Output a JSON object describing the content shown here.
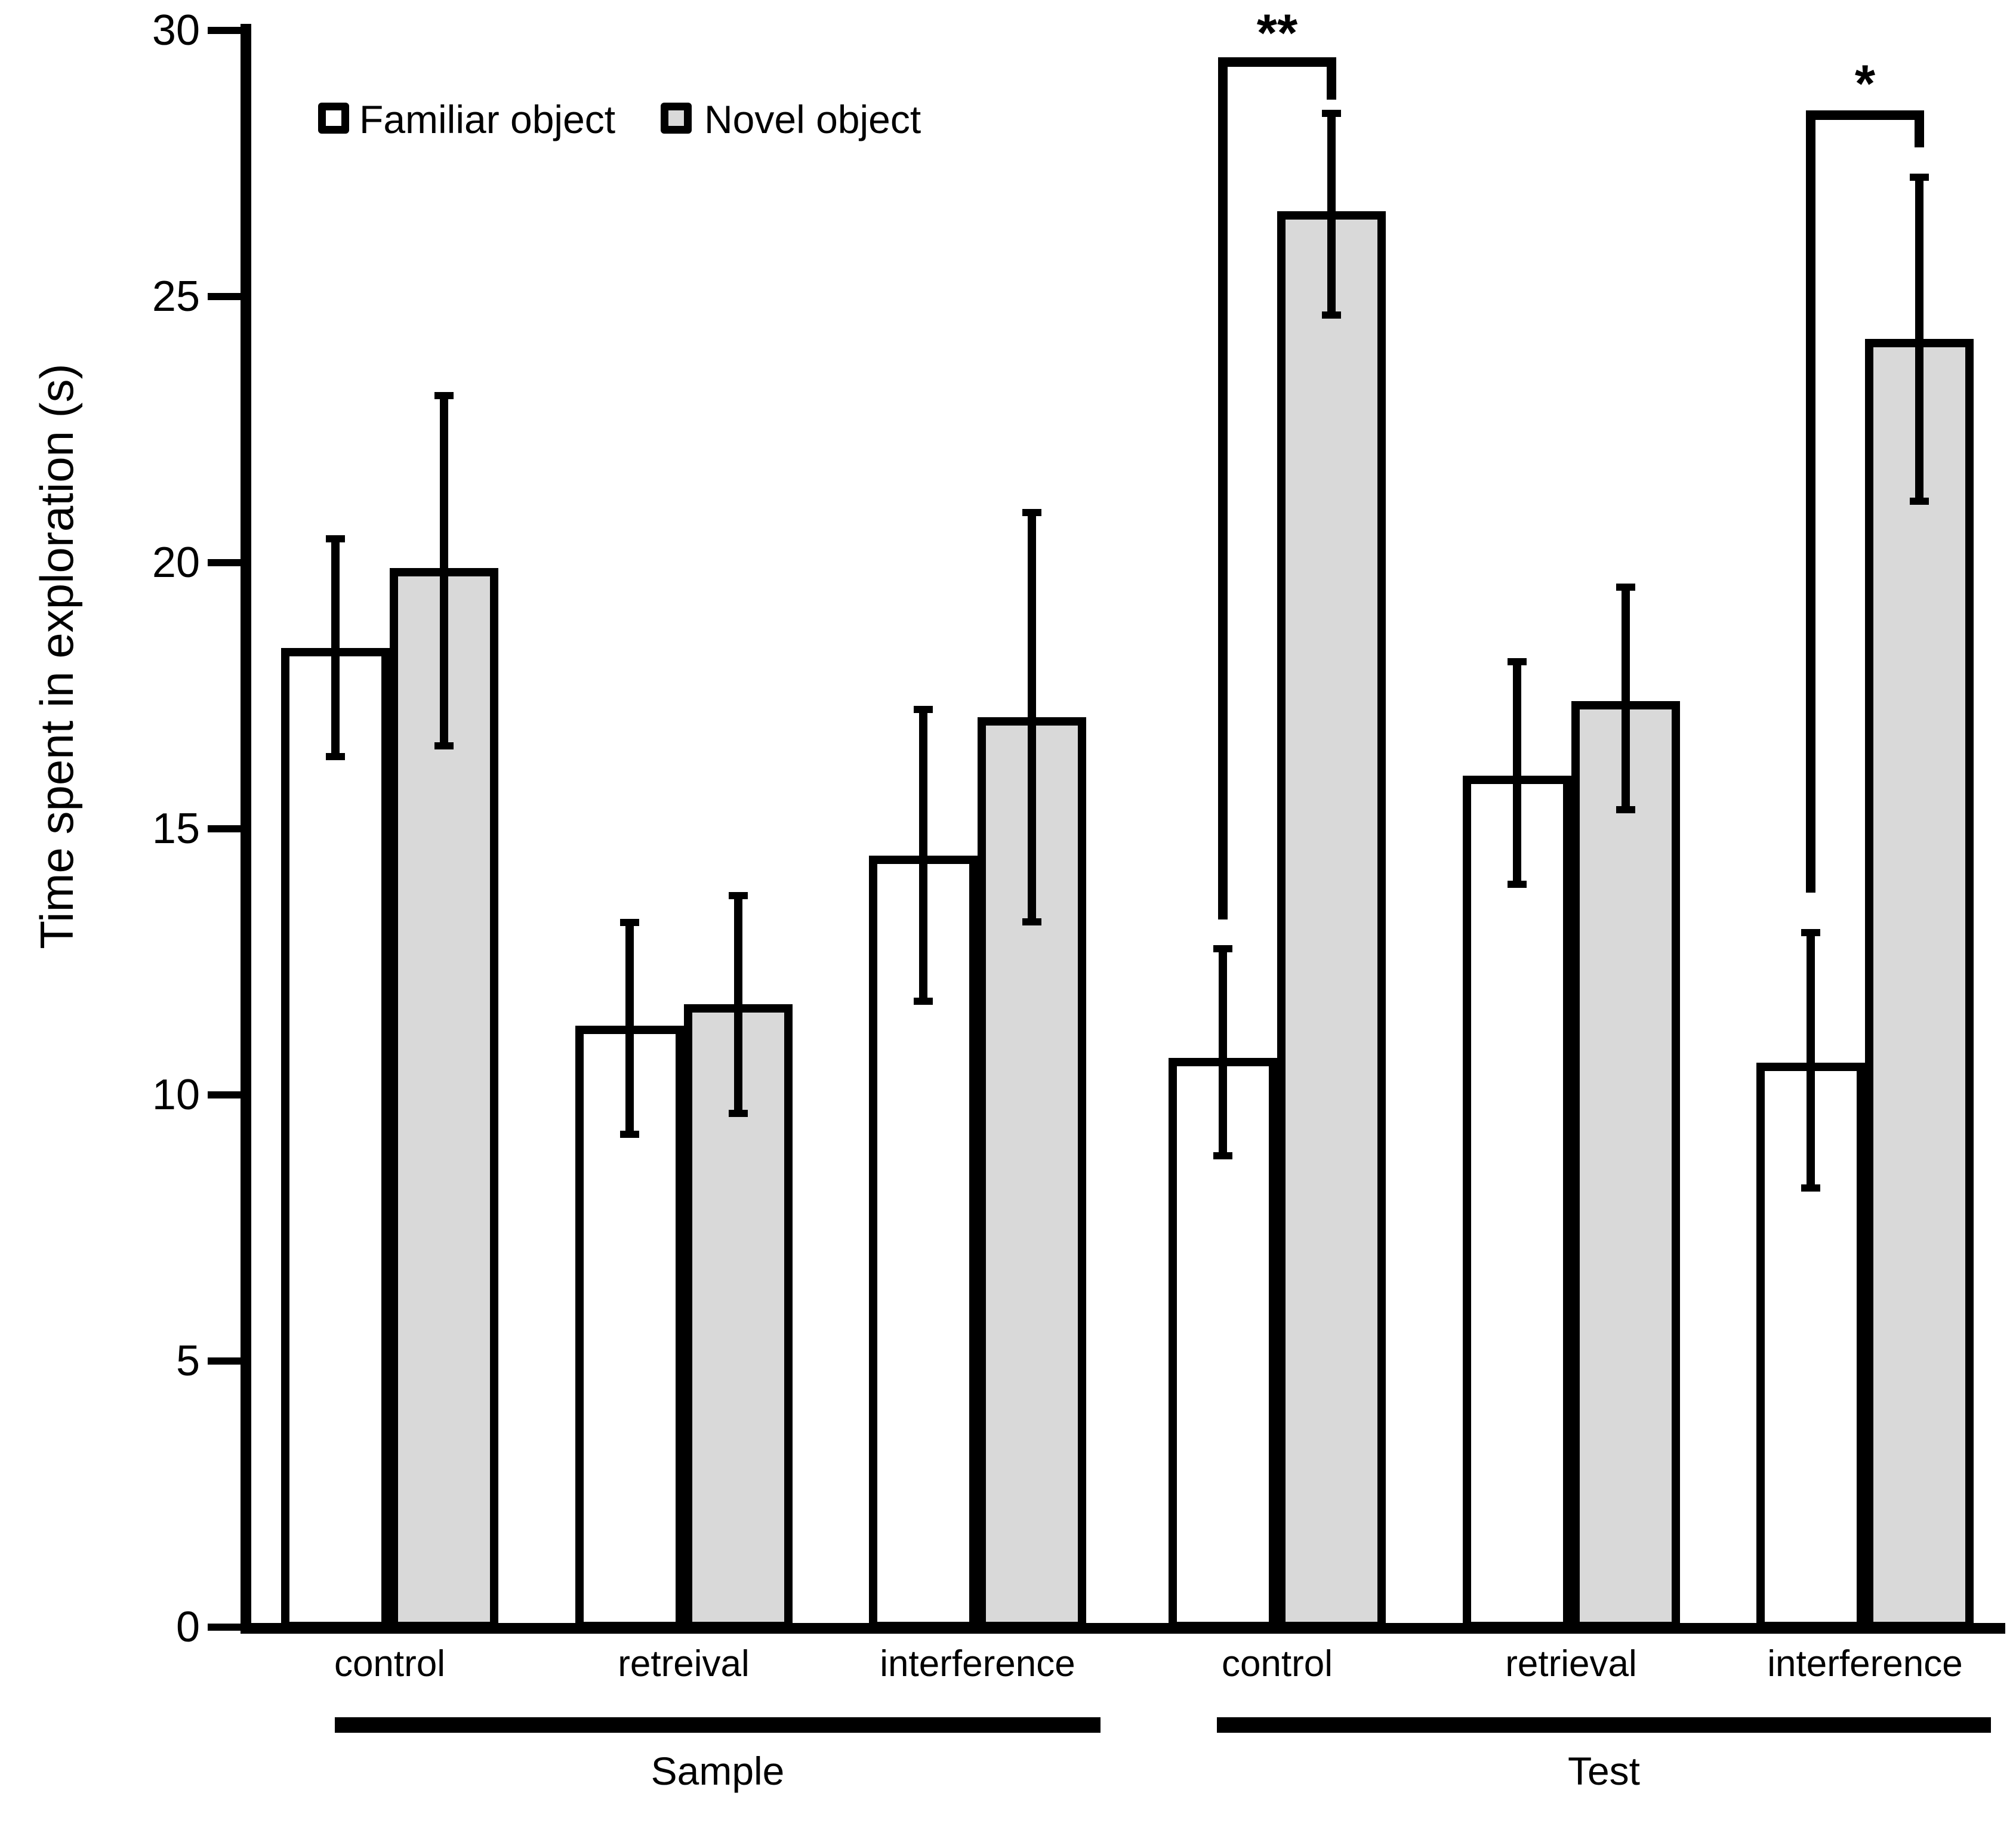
{
  "chart_data": {
    "type": "bar",
    "title": "",
    "xlabel": "",
    "ylabel": "Time spent in exploration (s)",
    "ylim": [
      0,
      30
    ],
    "yticks": [
      0,
      5,
      10,
      15,
      20,
      25,
      30
    ],
    "grid": false,
    "legend_position": "top-left",
    "legend": [
      {
        "name": "Familiar object",
        "fill": "#ffffff"
      },
      {
        "name": "Novel object",
        "fill": "#d9d9d9"
      }
    ],
    "series_names": [
      "Familiar object",
      "Novel object"
    ],
    "groups": [
      {
        "label": "Sample",
        "categories": [
          {
            "label": "control",
            "bars": [
              {
                "series": "Familiar object",
                "value": 18.4,
                "err_lo": 16.3,
                "err_hi": 20.5
              },
              {
                "series": "Novel object",
                "value": 19.9,
                "err_lo": 16.5,
                "err_hi": 23.2
              }
            ]
          },
          {
            "label": "retreival",
            "bars": [
              {
                "series": "Familiar object",
                "value": 11.3,
                "err_lo": 9.2,
                "err_hi": 13.3
              },
              {
                "series": "Novel object",
                "value": 11.7,
                "err_lo": 9.6,
                "err_hi": 13.8
              }
            ]
          },
          {
            "label": "interference",
            "bars": [
              {
                "series": "Familiar object",
                "value": 14.5,
                "err_lo": 11.7,
                "err_hi": 17.3
              },
              {
                "series": "Novel object",
                "value": 17.1,
                "err_lo": 13.2,
                "err_hi": 21.0
              }
            ]
          }
        ]
      },
      {
        "label": "Test",
        "categories": [
          {
            "label": "control",
            "bars": [
              {
                "series": "Familiar object",
                "value": 10.7,
                "err_lo": 8.8,
                "err_hi": 12.8
              },
              {
                "series": "Novel object",
                "value": 26.6,
                "err_lo": 24.6,
                "err_hi": 28.5
              }
            ]
          },
          {
            "label": "retrieval",
            "bars": [
              {
                "series": "Familiar object",
                "value": 16.0,
                "err_lo": 13.9,
                "err_hi": 18.2
              },
              {
                "series": "Novel object",
                "value": 17.4,
                "err_lo": 15.3,
                "err_hi": 19.6
              }
            ]
          },
          {
            "label": "interference",
            "bars": [
              {
                "series": "Familiar object",
                "value": 10.6,
                "err_lo": 8.2,
                "err_hi": 13.1
              },
              {
                "series": "Novel object",
                "value": 24.2,
                "err_lo": 21.1,
                "err_hi": 27.3
              }
            ]
          }
        ]
      }
    ],
    "significance": [
      {
        "label": "**",
        "group": 1,
        "category": 0,
        "bracket_y": 29.5,
        "label_y": 29.95,
        "left_leg_to": 13.3,
        "right_leg_to": 28.7
      },
      {
        "label": "*",
        "group": 1,
        "category": 2,
        "bracket_y": 28.5,
        "label_y": 29.0,
        "left_leg_to": 13.8,
        "right_leg_to": 27.8
      }
    ]
  },
  "colors": {
    "axis": "#000000",
    "bar_border": "#000000",
    "familiar_fill": "#ffffff",
    "novel_fill": "#d9d9d9",
    "background": "#ffffff"
  }
}
